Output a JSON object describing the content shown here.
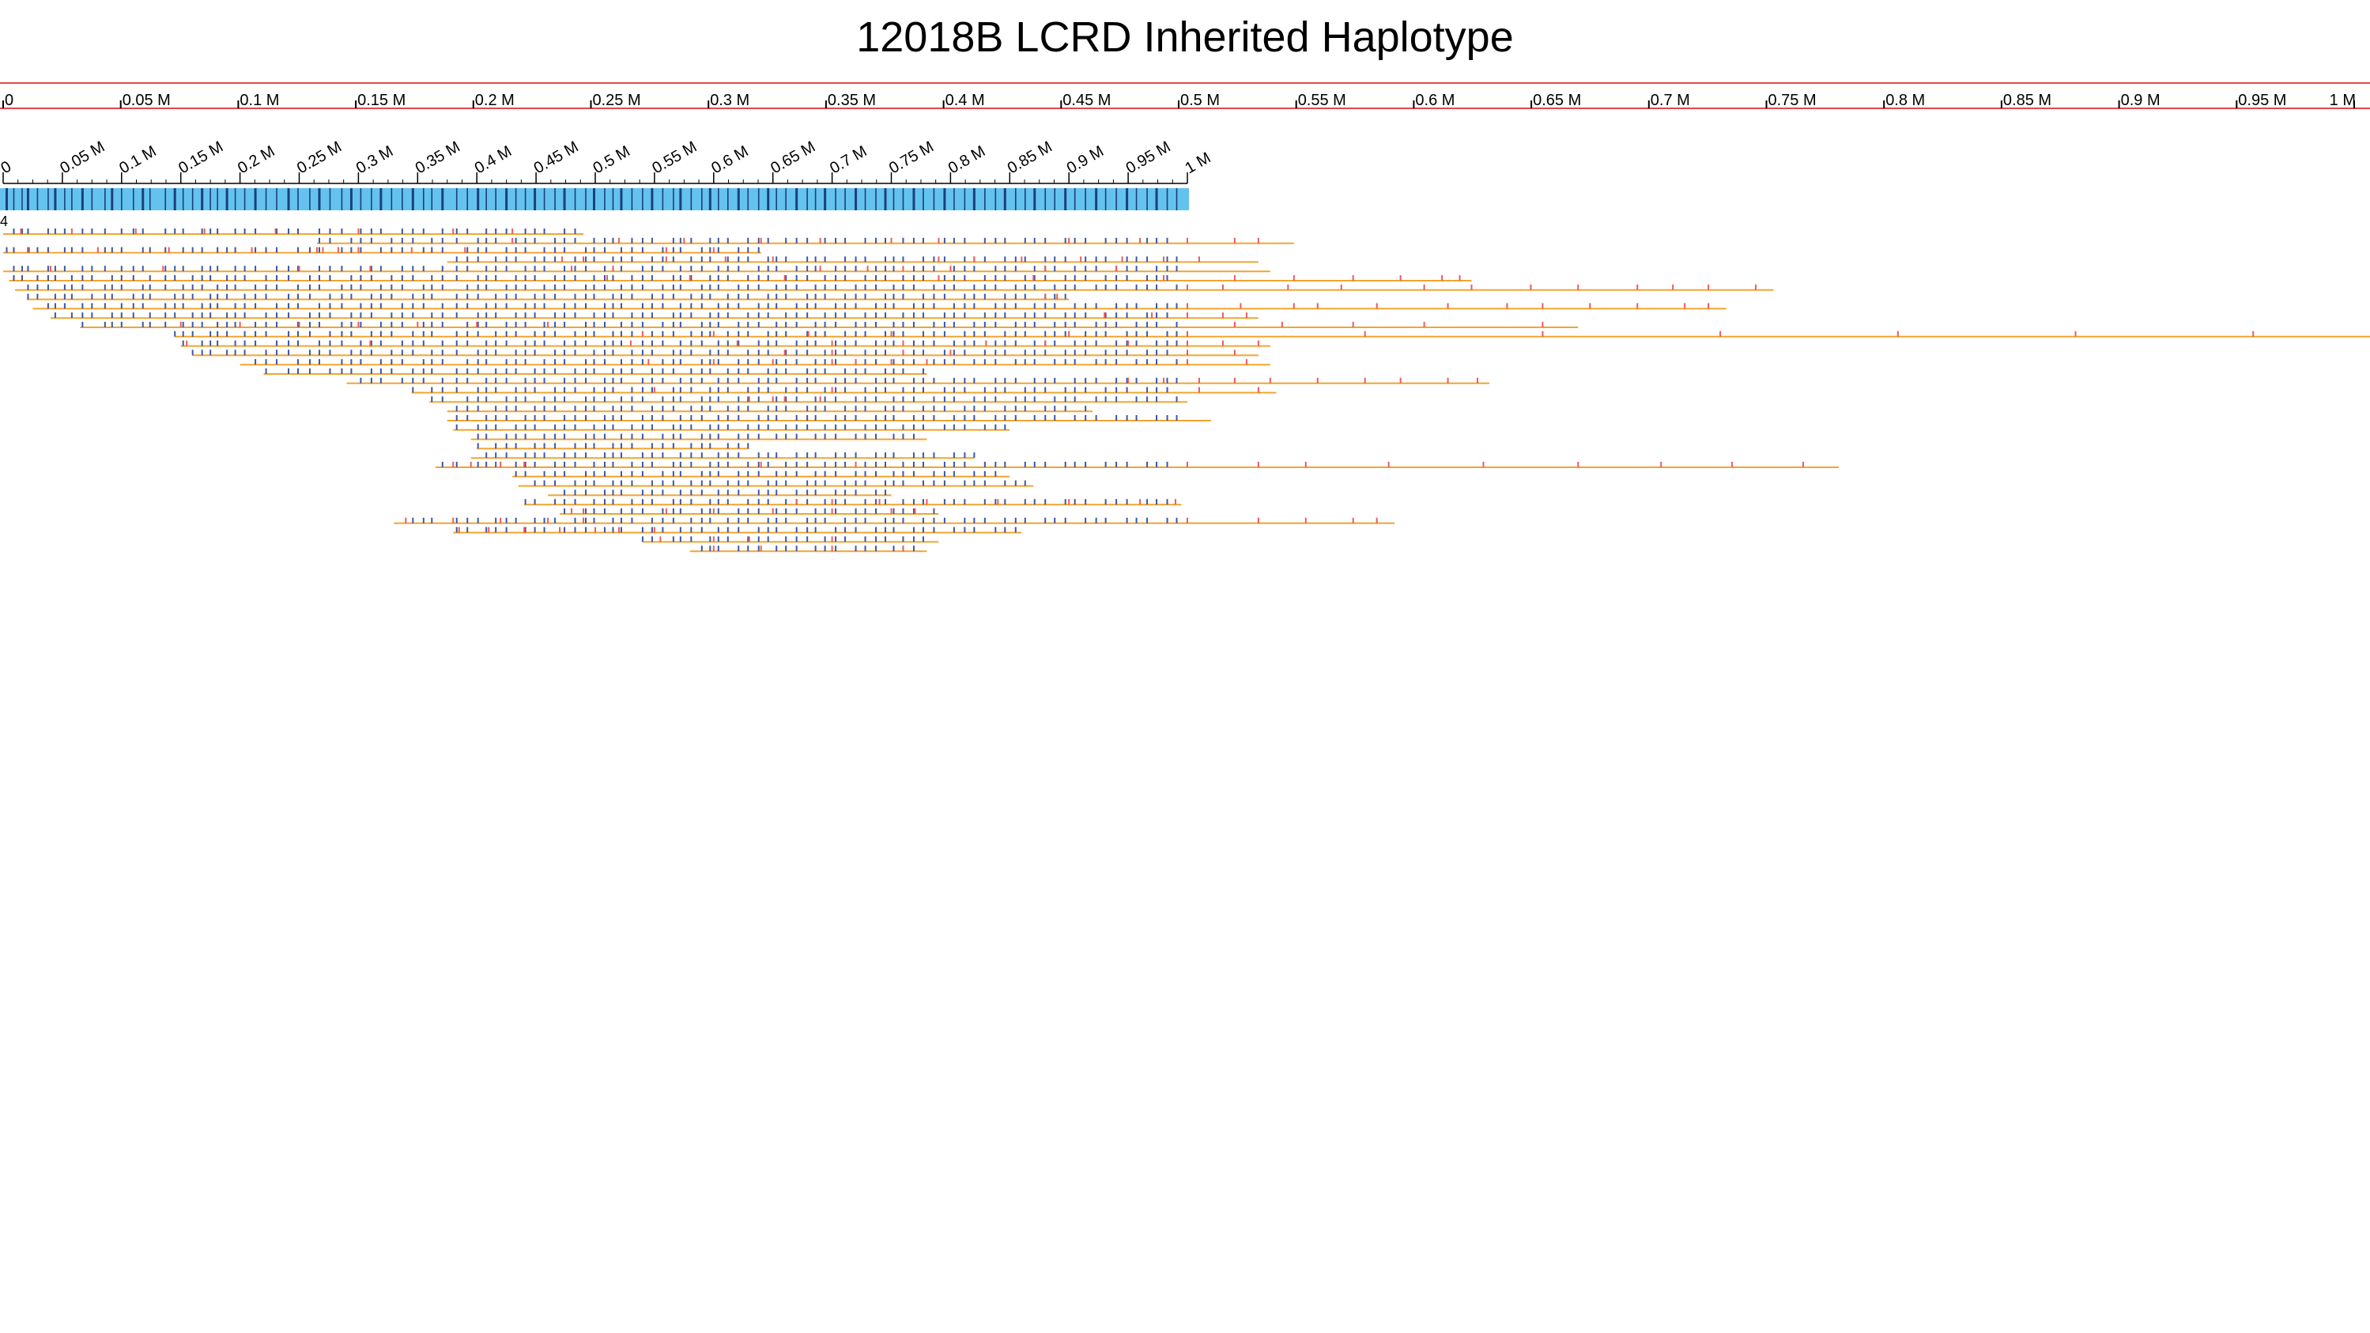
{
  "title": "12018B LCRD Inherited Haplotype",
  "chart_data": {
    "type": "genome-track",
    "title": "12018B LCRD Inherited Haplotype",
    "overview_axis": {
      "range": [
        0,
        1000000
      ],
      "ticks": [
        0,
        50000,
        100000,
        150000,
        200000,
        250000,
        300000,
        350000,
        400000,
        450000,
        500000,
        550000,
        600000,
        650000,
        700000,
        750000,
        800000,
        850000,
        900000,
        950000,
        1000000
      ],
      "tick_labels": [
        "0",
        "0.05 M",
        "0.1 M",
        "0.15 M",
        "0.2 M",
        "0.25 M",
        "0.3 M",
        "0.35 M",
        "0.4 M",
        "0.45 M",
        "0.5 M",
        "0.55 M",
        "0.6 M",
        "0.65 M",
        "0.7 M",
        "0.75 M",
        "0.8 M",
        "0.85 M",
        "0.9 M",
        "0.95 M",
        "1 M"
      ],
      "selection_range": [
        0,
        1000000
      ]
    },
    "detail_axis": {
      "range": [
        0,
        1000000
      ],
      "ticks": [
        0,
        50000,
        100000,
        150000,
        200000,
        250000,
        300000,
        350000,
        400000,
        450000,
        500000,
        550000,
        600000,
        650000,
        700000,
        750000,
        800000,
        850000,
        900000,
        950000,
        1000000
      ],
      "tick_labels": [
        "0",
        "0.05 M",
        "0.1 M",
        "0.15 M",
        "0.2 M",
        "0.25 M",
        "0.3 M",
        "0.35 M",
        "0.4 M",
        "0.45 M",
        "0.5 M",
        "0.55 M",
        "0.6 M",
        "0.65 M",
        "0.7 M",
        "0.75 M",
        "0.8 M",
        "0.85 M",
        "0.9 M",
        "0.95 M",
        "1 M"
      ]
    },
    "haplotype_track": {
      "range": [
        0,
        1000000
      ],
      "variant_positions": [
        3000,
        9000,
        16000,
        21000,
        29000,
        38000,
        44000,
        52000,
        58000,
        67000,
        75000,
        86000,
        92000,
        100000,
        110000,
        118000,
        124000,
        137000,
        145000,
        152000,
        160000,
        168000,
        175000,
        181000,
        189000,
        196000,
        204000,
        213000,
        222000,
        231000,
        241000,
        249000,
        259000,
        267000,
        276000,
        286000,
        294000,
        302000,
        311000,
        319000,
        328000,
        337000,
        346000,
        355000,
        362000,
        371000,
        383000,
        392000,
        401000,
        408000,
        416000,
        425000,
        433000,
        441000,
        449000,
        457000,
        466000,
        474000,
        483000,
        492000,
        499000,
        508000,
        515000,
        522000,
        531000,
        540000,
        548000,
        557000,
        566000,
        572000,
        581000,
        590000,
        597000,
        604000,
        612000,
        621000,
        629000,
        638000,
        646000,
        653000,
        661000,
        670000,
        679000,
        686000,
        694000,
        703000,
        711000,
        720000,
        728000,
        737000,
        745000,
        752000,
        760000,
        769000,
        777000,
        786000,
        795000,
        803000,
        812000,
        820000,
        829000,
        838000,
        846000,
        855000,
        863000,
        871000,
        880000,
        888000,
        897000,
        905000,
        914000,
        923000,
        931000,
        940000,
        949000,
        957000,
        966000,
        974000,
        983000,
        991000
      ]
    },
    "label_marker": "4",
    "reads": [
      {
        "start": 0,
        "end": 490000,
        "gap_spans": [],
        "mismatches": [
          15000,
          58000,
          112000,
          170000,
          230000,
          300000,
          380000,
          430000
        ]
      },
      {
        "start": 265000,
        "end": 1090000,
        "gap_spans": [],
        "mismatches": [
          430000,
          520000,
          575000,
          640000,
          690000,
          750000,
          790000,
          900000,
          960000,
          1000000,
          1040000,
          1060000
        ]
      },
      {
        "start": 0,
        "end": 640000,
        "gap_spans": [],
        "mismatches": [
          22000,
          80000,
          140000,
          210000,
          265000,
          270000,
          283000,
          300000,
          345000,
          390000,
          560000,
          600000
        ]
      },
      {
        "start": 375000,
        "end": 1060000,
        "gap_spans": [],
        "mismatches": [
          472000,
          490000,
          560000,
          610000,
          650000,
          790000,
          820000,
          860000,
          910000,
          945000,
          980000,
          1010000
        ]
      },
      {
        "start": 0,
        "end": 1070000,
        "gap_spans": [],
        "mismatches": [
          40000,
          135000,
          250000,
          310000,
          480000,
          515000,
          690000,
          730000,
          760000,
          800000,
          880000,
          940000
        ]
      },
      {
        "start": 5000,
        "end": 1240000,
        "gap_spans": [],
        "mismatches": [
          510000,
          580000,
          660000,
          790000,
          870000,
          980000,
          1040000,
          1090000,
          1140000,
          1180000,
          1215000,
          1230000
        ]
      },
      {
        "start": 10000,
        "end": 1495000,
        "gap_spans": [],
        "mismatches": [
          1000000,
          1030000,
          1085000,
          1130000,
          1200000,
          1240000,
          1290000,
          1330000,
          1380000,
          1410000,
          1440000,
          1480000
        ]
      },
      {
        "start": 20000,
        "end": 900000,
        "gap_spans": [],
        "mismatches": [
          880000,
          890000
        ]
      },
      {
        "start": 25000,
        "end": 1455000,
        "gap_spans": [],
        "mismatches": [
          1000000,
          1045000,
          1090000,
          1110000,
          1160000,
          1220000,
          1270000,
          1300000,
          1340000,
          1380000,
          1420000,
          1440000
        ]
      },
      {
        "start": 40000,
        "end": 1060000,
        "gap_spans": [],
        "mismatches": [
          930000,
          970000,
          1000000,
          1030000,
          1050000
        ]
      },
      {
        "start": 65000,
        "end": 1330000,
        "gap_spans": [],
        "mismatches": [
          150000,
          200000,
          250000,
          300000,
          350000,
          400000,
          460000,
          1040000,
          1080000,
          1140000,
          1200000,
          1300000
        ]
      },
      {
        "start": 145000,
        "end": 2000000,
        "gap_spans": [],
        "mismatches": [
          540000,
          600000,
          680000,
          750000,
          900000,
          1000000,
          1150000,
          1300000,
          1450000,
          1600000,
          1750000,
          1900000
        ]
      },
      {
        "start": 150000,
        "end": 1070000,
        "gap_spans": [],
        "mismatches": [
          155000,
          310000,
          530000,
          620000,
          700000,
          760000,
          830000,
          880000,
          950000,
          1000000,
          1030000,
          1060000
        ]
      },
      {
        "start": 160000,
        "end": 1060000,
        "gap_spans": [],
        "mismatches": [
          660000,
          700000,
          760000,
          800000,
          1000000,
          1040000
        ]
      },
      {
        "start": 200000,
        "end": 1070000,
        "gap_spans": [],
        "mismatches": [
          545000,
          600000,
          650000,
          700000,
          720000,
          750000,
          780000,
          1000000,
          1050000
        ]
      },
      {
        "start": 220000,
        "end": 780000,
        "gap_spans": [],
        "mismatches": []
      },
      {
        "start": 290000,
        "end": 1255000,
        "gap_spans": [],
        "mismatches": [
          950000,
          980000,
          1010000,
          1040000,
          1070000,
          1110000,
          1150000,
          1180000,
          1220000,
          1245000
        ]
      },
      {
        "start": 345000,
        "end": 1075000,
        "gap_spans": [],
        "mismatches": [
          550000,
          700000,
          1010000,
          1060000
        ]
      },
      {
        "start": 360000,
        "end": 1000000,
        "gap_spans": [],
        "mismatches": [
          630000,
          650000,
          660000,
          690000
        ]
      },
      {
        "start": 375000,
        "end": 920000,
        "gap_spans": [],
        "mismatches": []
      },
      {
        "start": 375000,
        "end": 1020000,
        "gap_spans": [],
        "mismatches": []
      },
      {
        "start": 380000,
        "end": 850000,
        "gap_spans": [],
        "mismatches": []
      },
      {
        "start": 395000,
        "end": 780000,
        "gap_spans": [],
        "mismatches": []
      },
      {
        "start": 400000,
        "end": 630000,
        "gap_spans": [],
        "mismatches": []
      },
      {
        "start": 395000,
        "end": 820000,
        "gap_spans": [],
        "mismatches": []
      },
      {
        "start": 365000,
        "end": 1550000,
        "gap_spans": [],
        "mismatches": [
          380000,
          395000,
          420000,
          440000,
          640000,
          720000,
          1000000,
          1060000,
          1100000,
          1170000,
          1250000,
          1330000,
          1400000,
          1460000,
          1520000
        ]
      },
      {
        "start": 430000,
        "end": 850000,
        "gap_spans": [],
        "mismatches": []
      },
      {
        "start": 435000,
        "end": 870000,
        "gap_spans": [],
        "mismatches": []
      },
      {
        "start": 460000,
        "end": 750000,
        "gap_spans": [],
        "mismatches": []
      },
      {
        "start": 440000,
        "end": 995000,
        "gap_spans": [],
        "mismatches": [
          670000,
          700000,
          740000,
          780000,
          840000,
          900000,
          960000,
          990000
        ]
      },
      {
        "start": 470000,
        "end": 790000,
        "gap_spans": [],
        "mismatches": [
          480000,
          490000,
          560000,
          600000,
          650000,
          700000,
          750000,
          770000
        ]
      },
      {
        "start": 330000,
        "end": 1175000,
        "gap_spans": [],
        "mismatches": [
          340000,
          380000,
          420000,
          460000,
          490000,
          1000000,
          1060000,
          1100000,
          1140000,
          1160000
        ]
      },
      {
        "start": 380000,
        "end": 860000,
        "gap_spans": [],
        "mismatches": [
          385000,
          410000,
          440000,
          470000,
          500000,
          520000,
          550000
        ]
      },
      {
        "start": 540000,
        "end": 790000,
        "gap_spans": [],
        "mismatches": [
          555000,
          600000,
          630000,
          700000
        ]
      },
      {
        "start": 580000,
        "end": 780000,
        "gap_spans": [],
        "mismatches": [
          600000,
          640000,
          700000,
          760000
        ]
      }
    ]
  }
}
